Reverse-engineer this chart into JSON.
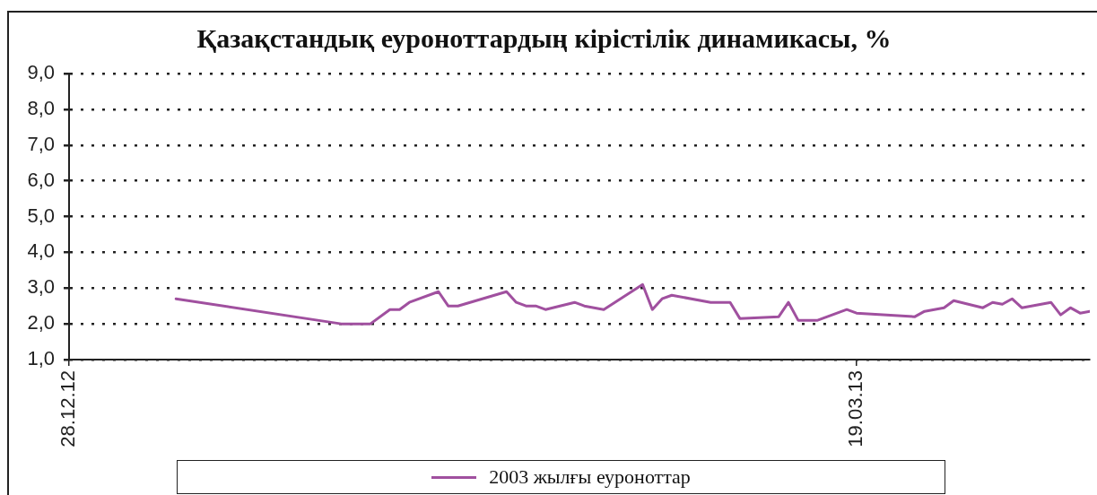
{
  "chart_data": {
    "type": "line",
    "title": "Қазақстандық еуроноттардың кірістілік динамикасы, %",
    "x": [
      "2013-01-08",
      "2013-01-25",
      "2013-01-28",
      "2013-01-30",
      "2013-01-31",
      "2013-02-01",
      "2013-02-04",
      "2013-02-05",
      "2013-02-06",
      "2013-02-11",
      "2013-02-12",
      "2013-02-13",
      "2013-02-14",
      "2013-02-15",
      "2013-02-18",
      "2013-02-19",
      "2013-02-21",
      "2013-02-25",
      "2013-02-26",
      "2013-02-27",
      "2013-02-28",
      "2013-03-04",
      "2013-03-06",
      "2013-03-07",
      "2013-03-11",
      "2013-03-12",
      "2013-03-13",
      "2013-03-15",
      "2013-03-18",
      "2013-03-19",
      "2013-03-25",
      "2013-03-26",
      "2013-03-28",
      "2013-03-29",
      "2013-04-01",
      "2013-04-02",
      "2013-04-03",
      "2013-04-04",
      "2013-04-05",
      "2013-04-08",
      "2013-04-09",
      "2013-04-10",
      "2013-04-11",
      "2013-04-12"
    ],
    "series": [
      {
        "name": "2003 жылғы еуроноттар",
        "color": "#a0509f",
        "values": [
          2.7,
          2.0,
          2.0,
          2.4,
          2.4,
          2.6,
          2.9,
          2.5,
          2.5,
          2.9,
          2.6,
          2.5,
          2.5,
          2.4,
          2.6,
          2.5,
          2.4,
          3.1,
          2.4,
          2.7,
          2.8,
          2.6,
          2.6,
          2.15,
          2.2,
          2.6,
          2.1,
          2.1,
          2.4,
          2.3,
          2.2,
          2.35,
          2.45,
          2.65,
          2.45,
          2.6,
          2.55,
          2.7,
          2.45,
          2.6,
          2.25,
          2.45,
          2.3,
          2.35
        ]
      }
    ],
    "xlim": [
      "2012-12-28",
      "2013-04-12"
    ],
    "xticks": [
      {
        "value": "2012-12-28",
        "label": "28.12.12"
      },
      {
        "value": "2013-03-19",
        "label": "19.03.13"
      }
    ],
    "ylim": [
      1,
      9
    ],
    "yticks": [
      {
        "value": 1,
        "label": "1,0"
      },
      {
        "value": 2,
        "label": "2,0"
      },
      {
        "value": 3,
        "label": "3,0"
      },
      {
        "value": 4,
        "label": "4,0"
      },
      {
        "value": 5,
        "label": "5,0"
      },
      {
        "value": 6,
        "label": "6,0"
      },
      {
        "value": 7,
        "label": "7,0"
      },
      {
        "value": 8,
        "label": "8,0"
      },
      {
        "value": 9,
        "label": "9,0"
      }
    ],
    "grid": "y",
    "legend": "bottom",
    "marker": "none"
  }
}
